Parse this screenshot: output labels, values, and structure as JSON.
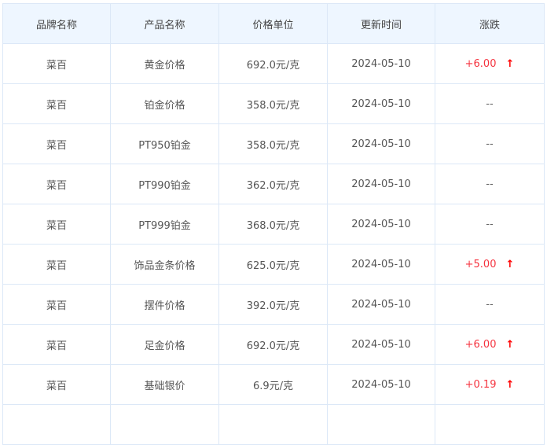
{
  "headers": [
    "品牌名称",
    "产品名称",
    "价格单位",
    "更新时间",
    "涨跌"
  ],
  "rows": [
    {
      "brand": "菜百",
      "product": "黄金价格",
      "price": "692.0元/克",
      "date": "2024-05-10",
      "change": "+6.00",
      "trend": "up"
    },
    {
      "brand": "菜百",
      "product": "铂金价格",
      "price": "358.0元/克",
      "date": "2024-05-10",
      "change": "--",
      "trend": "flat"
    },
    {
      "brand": "菜百",
      "product": "PT950铂金",
      "price": "358.0元/克",
      "date": "2024-05-10",
      "change": "--",
      "trend": "flat"
    },
    {
      "brand": "菜百",
      "product": "PT990铂金",
      "price": "362.0元/克",
      "date": "2024-05-10",
      "change": "--",
      "trend": "flat"
    },
    {
      "brand": "菜百",
      "product": "PT999铂金",
      "price": "368.0元/克",
      "date": "2024-05-10",
      "change": "--",
      "trend": "flat"
    },
    {
      "brand": "菜百",
      "product": "饰品金条价格",
      "price": "625.0元/克",
      "date": "2024-05-10",
      "change": "+5.00",
      "trend": "up"
    },
    {
      "brand": "菜百",
      "product": "摆件价格",
      "price": "392.0元/克",
      "date": "2024-05-10",
      "change": "--",
      "trend": "flat"
    },
    {
      "brand": "菜百",
      "product": "足金价格",
      "price": "692.0元/克",
      "date": "2024-05-10",
      "change": "+6.00",
      "trend": "up"
    },
    {
      "brand": "菜百",
      "product": "基础银价",
      "price": "6.9元/克",
      "date": "2024-05-10",
      "change": "+0.19",
      "trend": "up"
    }
  ],
  "colors": {
    "up": "#f5333f",
    "header_bg": "#eef6ff",
    "border": "#dce8f7"
  },
  "icons": {
    "up": "arrow-up-icon"
  }
}
